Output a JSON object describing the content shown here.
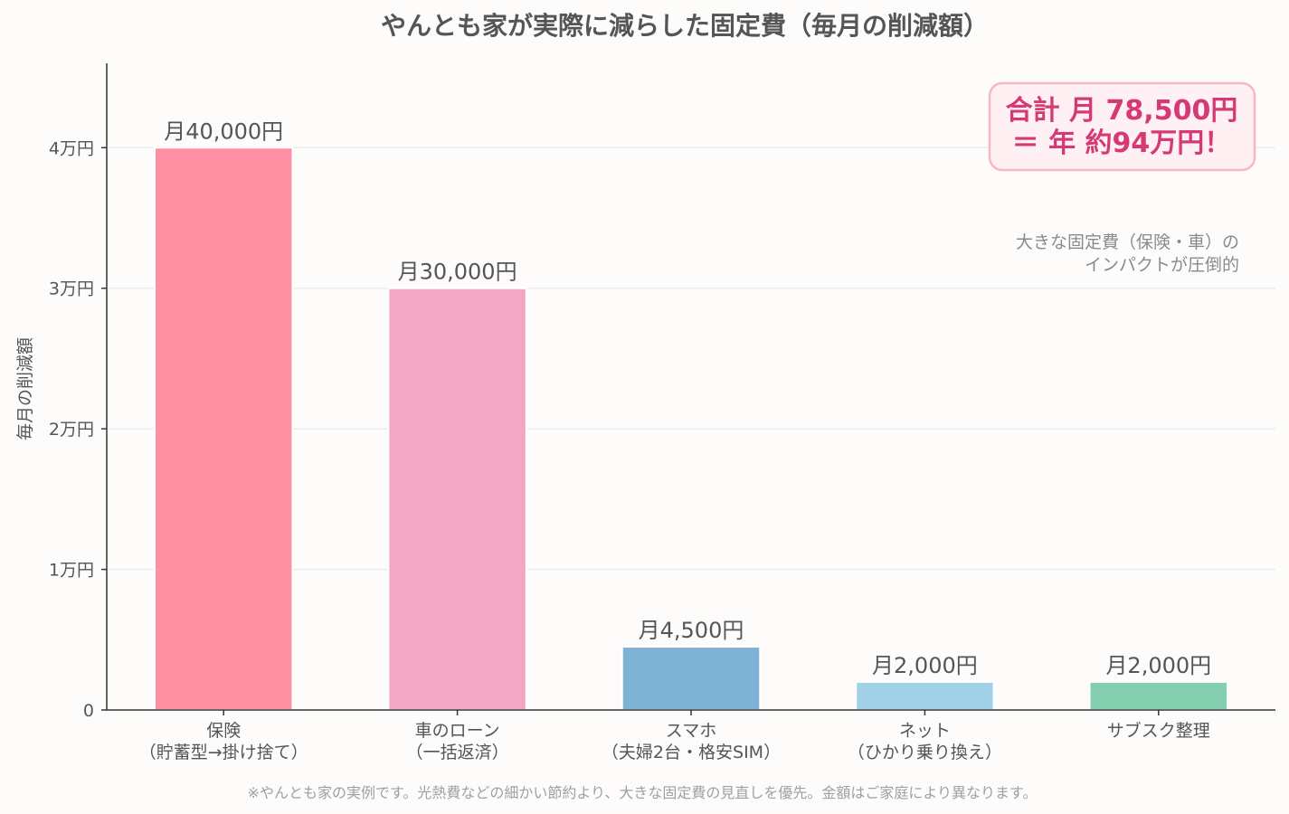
{
  "chart_data": {
    "type": "bar",
    "title": "やんとも家が実際に減らした固定費（毎月の削減額）",
    "xlabel": "",
    "ylabel": "毎月の削減額",
    "ylim": [
      0,
      46000
    ],
    "yticks": [
      0,
      10000,
      20000,
      30000,
      40000
    ],
    "ytick_labels": [
      "0",
      "1万円",
      "2万円",
      "3万円",
      "4万円"
    ],
    "grid": true,
    "categories": [
      [
        "保険",
        "（貯蓄型→掛け捨て）"
      ],
      [
        "車のローン",
        "（一括返済）"
      ],
      [
        "スマホ",
        "（夫婦2台・格安SIM）"
      ],
      [
        "ネット",
        "（ひかり乗り換え）"
      ],
      [
        "サブスク整理"
      ]
    ],
    "values": [
      40000,
      30000,
      4500,
      2000,
      2000
    ],
    "value_labels": [
      "月40,000円",
      "月30,000円",
      "月4,500円",
      "月2,000円",
      "月2,000円"
    ],
    "colors": [
      "#ff8fa3",
      "#f2a7c3",
      "#7fb3d5",
      "#a2d2e7",
      "#85cfb1"
    ],
    "total_box": {
      "lines": [
        "合計 月 78,500円",
        "＝ 年 約94万円！"
      ],
      "text_color": "#d63a75",
      "fill": "#fff0f4",
      "stroke": "#f7b5c8"
    },
    "annotation": [
      "大きな固定費（保険・車）の",
      "インパクトが圧倒的"
    ],
    "footnote": "※やんとも家の実例です。光熱費などの細かい節約より、大きな固定費の見直しを優先。金額はご家庭により異なります。"
  }
}
